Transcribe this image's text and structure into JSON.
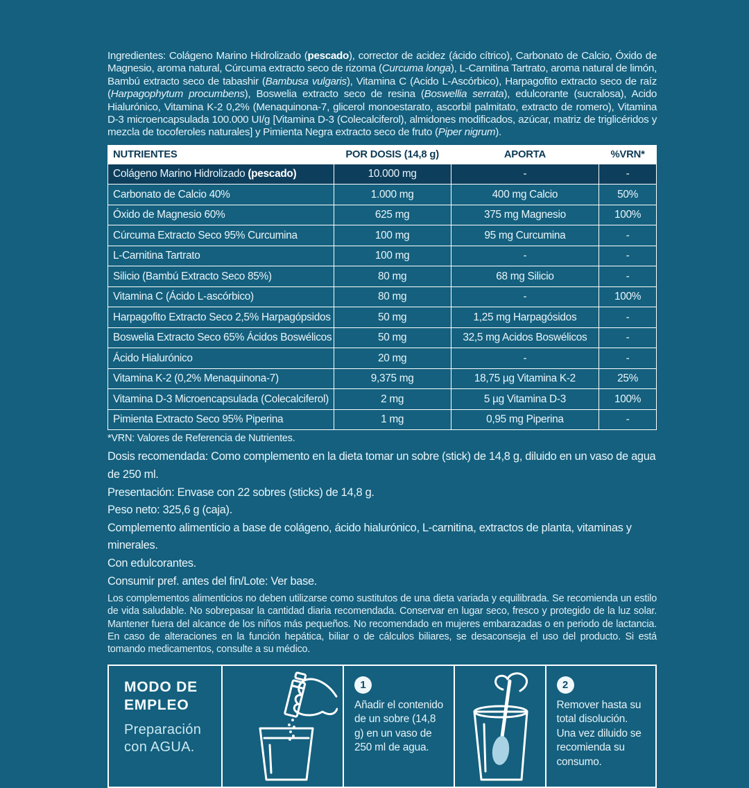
{
  "colors": {
    "background": "#14607E",
    "panel_dark": "#0D3E5C",
    "text_light": "#EAF5FA",
    "table_header_bg": "#FFFFFF",
    "table_header_text": "#0D3A55",
    "border": "#FFFFFF"
  },
  "ingredients": {
    "segments": [
      {
        "s": "n",
        "t": "Ingredientes: Colágeno Marino Hidrolizado ("
      },
      {
        "s": "b",
        "t": "pescado"
      },
      {
        "s": "n",
        "t": "), corrector de acidez (ácido cítrico), Carbonato de Calcio, Óxido de Magnesio, aroma natural, Cúrcuma extracto seco de rizoma ("
      },
      {
        "s": "i",
        "t": "Curcuma longa"
      },
      {
        "s": "n",
        "t": "), L-Carnitina Tartrato, aroma natural de limón, Bambú extracto seco de tabashir ("
      },
      {
        "s": "i",
        "t": "Bambusa vulgaris"
      },
      {
        "s": "n",
        "t": "), Vitamina C (Acido L-Ascórbico), Harpagofito extracto seco de raíz ("
      },
      {
        "s": "i",
        "t": "Harpagophytum procumbens"
      },
      {
        "s": "n",
        "t": "), Boswelia extracto seco de resina ("
      },
      {
        "s": "i",
        "t": "Boswellia serrata"
      },
      {
        "s": "n",
        "t": "), edulcorante (sucralosa), Acido Hialurónico, Vitamina K-2 0,2% (Menaquinona-7, glicerol monoestarato, ascorbil palmitato, extracto de romero), Vitamina D-3 microencapsulada 100.000 UI/g [Vitamina D-3 (Colecalciferol), almidones modificados, azúcar, matriz de triglicéridos y mezcla de tocoferoles naturales] y Pimienta Negra extracto seco de fruto ("
      },
      {
        "s": "i",
        "t": "Piper nigrum"
      },
      {
        "s": "n",
        "t": ")."
      }
    ]
  },
  "table": {
    "headers": [
      "NUTRIENTES",
      "POR DOSIS (14,8 g)",
      "APORTA",
      "%VRN*"
    ],
    "rows": [
      {
        "name": "Colágeno Marino Hidrolizado ",
        "name_b": "(pescado)",
        "dose": "10.000 mg",
        "aporta": "-",
        "vrn": "-"
      },
      {
        "name": "Carbonato de Calcio 40%",
        "dose": "1.000 mg",
        "aporta": "400 mg Calcio",
        "vrn": "50%"
      },
      {
        "name": "Óxido de Magnesio 60%",
        "dose": "625 mg",
        "aporta": "375 mg Magnesio",
        "vrn": "100%"
      },
      {
        "name": "Cúrcuma Extracto Seco 95% Curcumina",
        "dose": "100 mg",
        "aporta": "95 mg Curcumina",
        "vrn": "-"
      },
      {
        "name": "L-Carnitina Tartrato",
        "dose": "100 mg",
        "aporta": "-",
        "vrn": "-"
      },
      {
        "name": "Silicio (Bambú Extracto Seco 85%)",
        "dose": "80 mg",
        "aporta": "68 mg Silicio",
        "vrn": "-"
      },
      {
        "name": "Vitamina C (Ácido L-ascórbico)",
        "dose": "80 mg",
        "aporta": "-",
        "vrn": "100%"
      },
      {
        "name": "Harpagofito Extracto Seco 2,5% Harpagópsidos",
        "dose": "50 mg",
        "aporta": "1,25 mg Harpagósidos",
        "vrn": "-"
      },
      {
        "name": "Boswelia Extracto Seco 65% Ácidos Boswélicos",
        "dose": "50 mg",
        "aporta": "32,5 mg Acidos Boswélicos",
        "vrn": "-"
      },
      {
        "name": "Ácido Hialurónico",
        "dose": "20 mg",
        "aporta": "-",
        "vrn": "-"
      },
      {
        "name": "Vitamina K-2 (0,2% Menaquinona-7)",
        "dose": "9,375 mg",
        "aporta": "18,75 µg Vitamina K-2",
        "vrn": "25%"
      },
      {
        "name": "Vitamina D-3 Microencapsulada (Colecalciferol)",
        "dose": "2 mg",
        "aporta": "5 µg Vitamina D-3",
        "vrn": "100%"
      },
      {
        "name": "Pimienta Extracto Seco 95% Piperina",
        "dose": "1 mg",
        "aporta": "0,95 mg Piperina",
        "vrn": "-"
      }
    ]
  },
  "notes": {
    "vrn_note": "*VRN: Valores de Referencia de Nutrientes.",
    "dosis": "Dosis recomendada: Como complemento en la dieta tomar un sobre (stick) de 14,8 g, diluido en un vaso de agua de 250 ml.",
    "presentacion": "Presentación: Envase con 22 sobres (sticks) de 14,8 g.",
    "peso": "Peso neto: 325,6 g (caja).",
    "complemento": "Complemento alimenticio a base de colágeno, ácido hialurónico, L-carnitina, extractos de planta, vitaminas y minerales.",
    "edulcorantes": "Con edulcorantes.",
    "consumir": "Consumir pref. antes del fin/Lote: Ver base.",
    "legal": "Los complementos alimenticios no deben utilizarse como sustitutos de una dieta variada y equilibrada. Se recomienda un estilo de vida saludable. No sobrepasar la cantidad diaria recomendada. Conservar en lugar seco, fresco y protegido de la luz solar. Mantener fuera del alcance de los niños más pequeños. No recomendado en mujeres embarazadas o en periodo de lactancia. En caso de alteraciones en la función hepática, biliar o de cálculos biliares, se desaconseja el uso del producto. Si está tomando medicamentos, consulte a su médico."
  },
  "usage": {
    "title": "MODO DE\nEMPLEO",
    "subtitle": "Preparación\ncon AGUA.",
    "icons": [
      "pour-stick-into-glass-icon",
      "stir-glass-with-spoon-icon"
    ],
    "steps": [
      {
        "num": "1",
        "text": "Añadir el contenido de un sobre (14,8 g) en un vaso de 250 ml de agua."
      },
      {
        "num": "2",
        "text": "Remover hasta su total disolución. Una vez diluido se recomienda su consumo."
      }
    ]
  }
}
